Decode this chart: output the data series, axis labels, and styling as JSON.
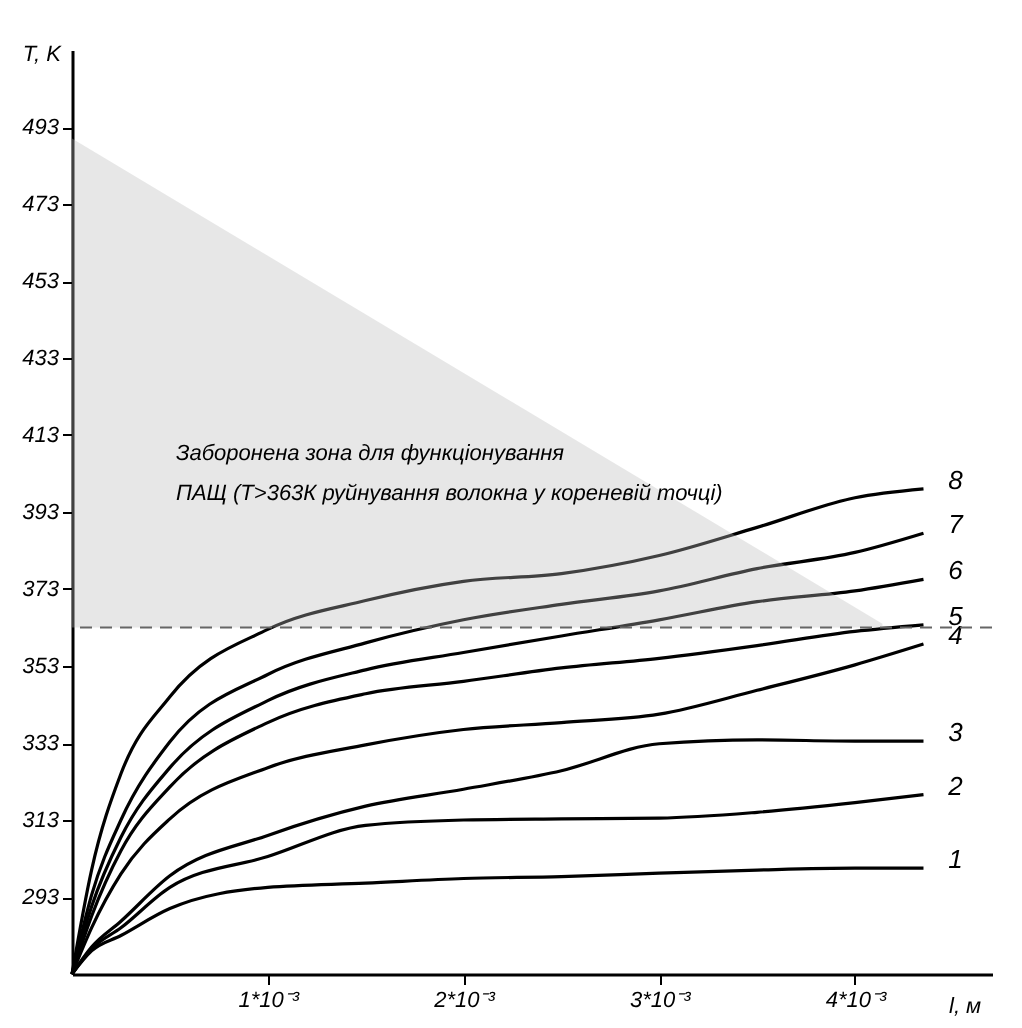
{
  "chart_data": {
    "type": "line",
    "xlabel": "l, м",
    "ylabel": "T, K",
    "x": [
      0,
      0.0001,
      0.00025,
      0.0005,
      0.001,
      0.0015,
      0.002,
      0.0025,
      0.003,
      0.0035,
      0.004,
      0.00435
    ],
    "xlim": [
      0,
      0.0047
    ],
    "ylim": [
      273,
      513
    ],
    "xticks": [
      {
        "value": 0.001,
        "label": "1*10⁻³"
      },
      {
        "value": 0.002,
        "label": "2*10⁻³"
      },
      {
        "value": 0.003,
        "label": "3*10⁻³"
      },
      {
        "value": 0.004,
        "label": "4*10⁻³"
      }
    ],
    "yticks": [
      293,
      313,
      333,
      353,
      373,
      393,
      413,
      433,
      453,
      473,
      493
    ],
    "series": [
      {
        "name": "1",
        "color": "#000000",
        "values": [
          273,
          279,
          283,
          290,
          295.5,
          296.6,
          297.8,
          298.3,
          299.2,
          300,
          300.5,
          300.5
        ]
      },
      {
        "name": "2",
        "color": "#000000",
        "values": [
          273,
          279.5,
          285,
          295.5,
          303.5,
          311.6,
          313,
          313.3,
          313.5,
          315,
          317.5,
          319.6
        ]
      },
      {
        "name": "3",
        "color": "#000000",
        "values": [
          273,
          280,
          286.7,
          298.5,
          309,
          316.6,
          321,
          325.8,
          332.8,
          333.8,
          333.5,
          333.5
        ]
      },
      {
        "name": "4",
        "color": "#000000",
        "values": [
          273,
          285,
          299,
          313.3,
          326.6,
          332.5,
          336.5,
          338.3,
          340.5,
          346.7,
          353.3,
          358.7
        ]
      },
      {
        "name": "5",
        "color": "#000000",
        "values": [
          273,
          288,
          305,
          321.6,
          338.3,
          345.8,
          349,
          352.5,
          355,
          358.3,
          362,
          363.7
        ]
      },
      {
        "name": "6",
        "color": "#000000",
        "values": [
          273,
          290.5,
          308.5,
          326.6,
          344,
          352,
          356.5,
          360.8,
          365,
          369.7,
          372.5,
          375.5
        ]
      },
      {
        "name": "7",
        "color": "#000000",
        "values": [
          273,
          293.5,
          313,
          333.3,
          350.8,
          359,
          365,
          369,
          372.5,
          378.3,
          382.5,
          387.5
        ]
      },
      {
        "name": "8",
        "color": "#000000",
        "values": [
          273,
          300,
          325,
          345,
          362.5,
          370,
          375,
          377,
          381.7,
          389,
          396.7,
          399
        ]
      },
      {
        "type": "area",
        "color": "#bbbbbb",
        "x": [
          0,
          0.00414
        ],
        "values": [
          490,
          364
        ]
      }
    ],
    "ref_lines": [
      {
        "axis": "y",
        "value": 363,
        "color": "#666666",
        "line_style": "dashed"
      }
    ],
    "annotations": [
      "Заборонена зона для функціонування",
      "ПАЩ (T>363К руйнування волокна у кореневій точці)"
    ],
    "legend": false,
    "grid": false
  }
}
